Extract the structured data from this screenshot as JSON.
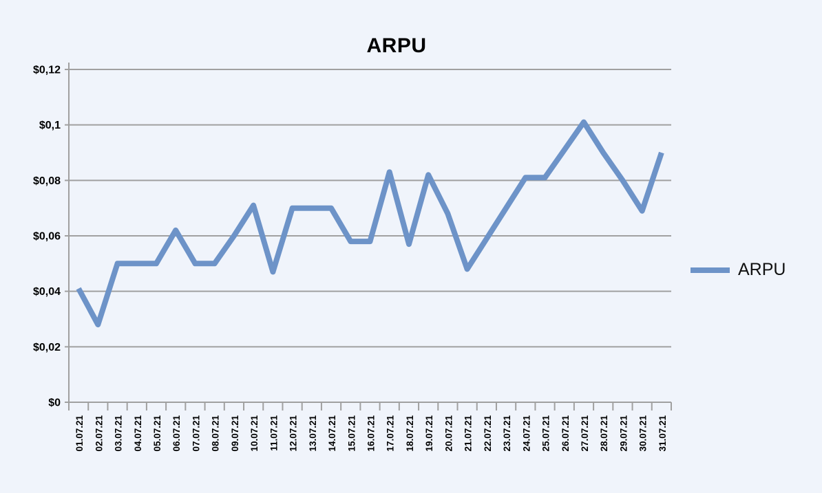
{
  "page": {
    "background": "#F0F4FB"
  },
  "title": "ARPU",
  "legend": {
    "label": "ARPU"
  },
  "chart_data": {
    "type": "line",
    "title": "ARPU",
    "categories": [
      "01.07.21",
      "02.07.21",
      "03.07.21",
      "04.07.21",
      "05.07.21",
      "06.07.21",
      "07.07.21",
      "08.07.21",
      "09.07.21",
      "10.07.21",
      "11.07.21",
      "12.07.21",
      "13.07.21",
      "14.07.21",
      "15.07.21",
      "16.07.21",
      "17.07.21",
      "18.07.21",
      "19.07.21",
      "20.07.21",
      "21.07.21",
      "22.07.21",
      "23.07.21",
      "24.07.21",
      "25.07.21",
      "26.07.21",
      "27.07.21",
      "28.07.21",
      "29.07.21",
      "30.07.21",
      "31.07.21"
    ],
    "series": [
      {
        "name": "ARPU",
        "color": "#6D93C8",
        "values": [
          0.041,
          0.028,
          0.05,
          0.05,
          0.05,
          0.062,
          0.05,
          0.05,
          0.06,
          0.071,
          0.047,
          0.07,
          0.07,
          0.07,
          0.058,
          0.058,
          0.083,
          0.057,
          0.082,
          0.068,
          0.048,
          0.059,
          0.07,
          0.081,
          0.081,
          0.091,
          0.101,
          0.09,
          0.08,
          0.069,
          0.09
        ]
      }
    ],
    "ylim": [
      0,
      0.12
    ],
    "y_ticks": [
      {
        "value": 0,
        "label": "$0"
      },
      {
        "value": 0.02,
        "label": "$0,02"
      },
      {
        "value": 0.04,
        "label": "$0,04"
      },
      {
        "value": 0.06,
        "label": "$0,06"
      },
      {
        "value": 0.08,
        "label": "$0,08"
      },
      {
        "value": 0.1,
        "label": "$0,1"
      },
      {
        "value": 0.12,
        "label": "$0,12"
      }
    ],
    "xlabel": "",
    "ylabel": "",
    "grid": "horizontal",
    "legend_position": "right",
    "gridline_color": "#A0A0A0",
    "axis_color": "#A0A0A0",
    "label_color": "#000000"
  }
}
